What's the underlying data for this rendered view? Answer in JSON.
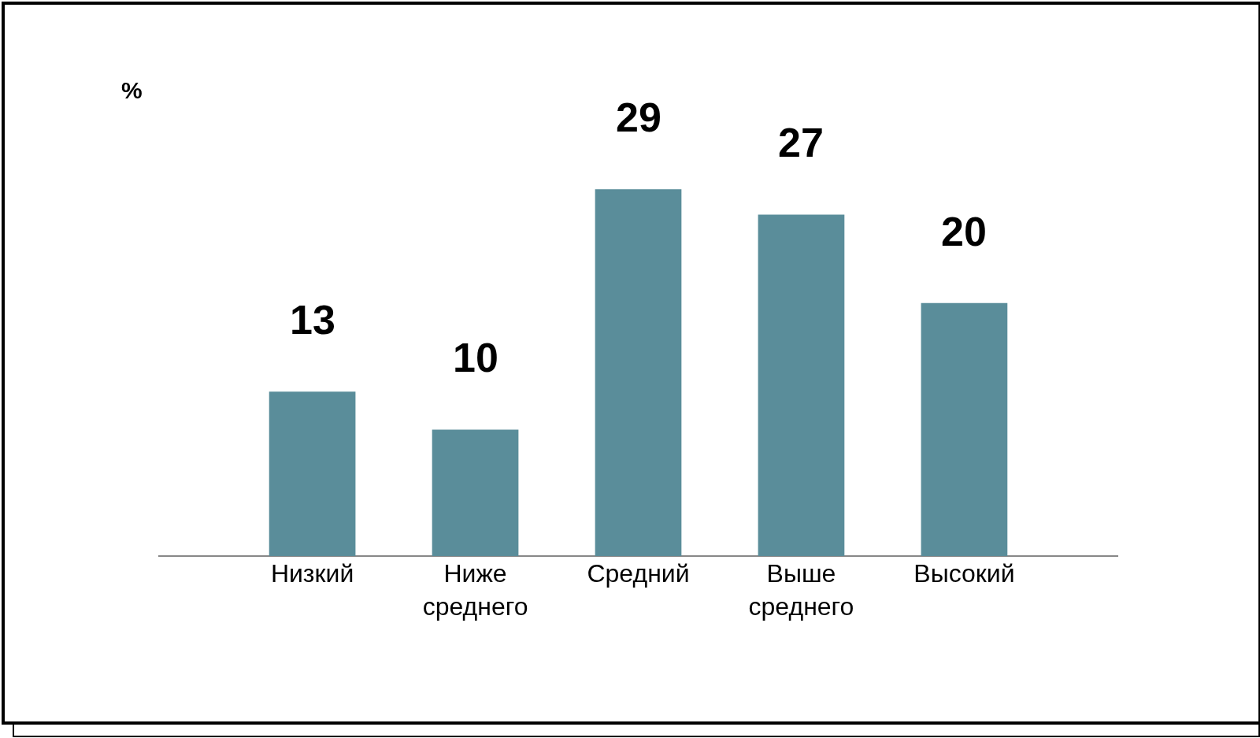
{
  "chart_data": {
    "type": "bar",
    "annotations": [
      "%"
    ],
    "categories": [
      "Низкий",
      "Ниже среднего",
      "Средний",
      "Выше среднего",
      "Высокий"
    ],
    "values": [
      13,
      10,
      29,
      27,
      20
    ],
    "color": "#5a8d9a",
    "data_labels": true,
    "grid": false
  }
}
